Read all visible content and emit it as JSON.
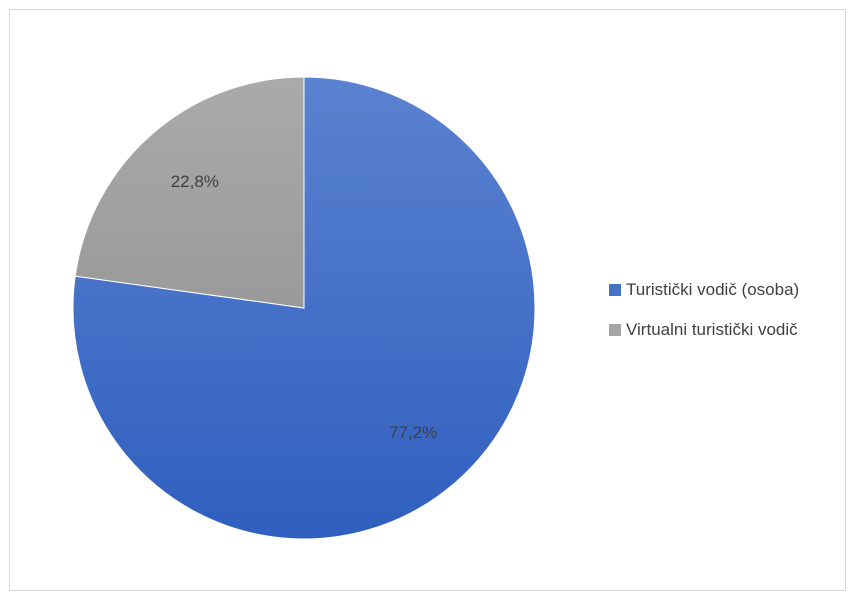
{
  "chart_data": {
    "type": "pie",
    "title": "",
    "categories": [
      "Turistički vodič (osoba)",
      "Virtualni turistički vodič"
    ],
    "values": [
      77.2,
      22.8
    ],
    "data_labels": [
      "77,2%",
      "22,8%"
    ],
    "colors": [
      "#4472c4",
      "#a5a5a5"
    ],
    "start_angle_deg": 0,
    "direction": "clockwise",
    "legend_position": "right"
  }
}
